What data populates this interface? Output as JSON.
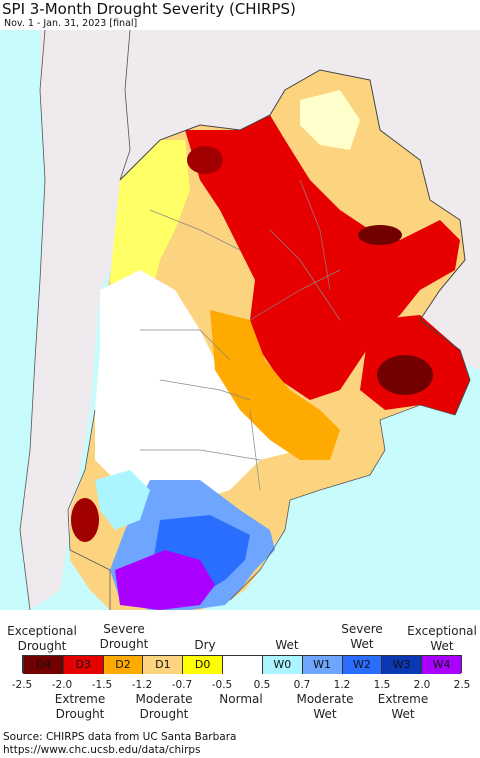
{
  "title": "SPI 3-Month Drought Severity (CHIRPS)",
  "subtitle": "Nov. 1 - Jan. 31, 2023 [final]",
  "colors": {
    "ocean": "#c8fbfb",
    "land_outside": "#eeeaee",
    "border": "#555555"
  },
  "legend": {
    "upper_labels": [
      {
        "text": "Exceptional\nDrought"
      },
      {
        "text": "Severe\nDrought"
      },
      {
        "text": "Dry"
      },
      {
        "text": "Wet"
      },
      {
        "text": "Severe\nWet"
      },
      {
        "text": "Exceptional\nWet"
      }
    ],
    "classes": [
      {
        "code": "D4",
        "color": "#730000"
      },
      {
        "code": "D3",
        "color": "#e60000"
      },
      {
        "code": "D2",
        "color": "#ffaa00"
      },
      {
        "code": "D1",
        "color": "#fcd37f"
      },
      {
        "code": "D0",
        "color": "#ffff00"
      },
      {
        "code": "",
        "color": "#ffffff"
      },
      {
        "code": "W0",
        "color": "#aaf5ff"
      },
      {
        "code": "W1",
        "color": "#6ea6ff"
      },
      {
        "code": "W2",
        "color": "#2a6eff"
      },
      {
        "code": "W3",
        "color": "#0a38b5"
      },
      {
        "code": "W4",
        "color": "#aa00ff"
      }
    ],
    "ticks": [
      "-2.5",
      "-2.0",
      "-1.5",
      "-1.2",
      "-0.7",
      "-0.5",
      "0.5",
      "0.7",
      "1.2",
      "1.5",
      "2.0",
      "2.5"
    ],
    "lower_labels": [
      {
        "text": "Extreme\nDrought"
      },
      {
        "text": "Moderate\nDrought"
      },
      {
        "text": "Normal"
      },
      {
        "text": "Moderate\nWet"
      },
      {
        "text": "Extreme\nWet"
      }
    ]
  },
  "source": {
    "line1": "Source: CHIRPS data from UC Santa Barbara",
    "line2": "https://www.chc.ucsb.edu/data/chirps"
  }
}
